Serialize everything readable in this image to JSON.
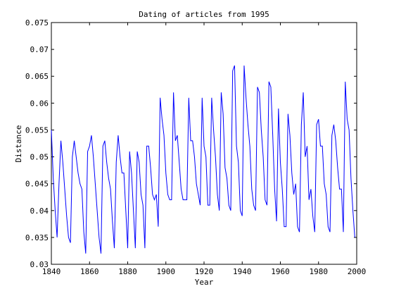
{
  "chart_data": {
    "type": "line",
    "title": "Dating of articles from 1995",
    "xlabel": "Year",
    "ylabel": "Distance",
    "xlim": [
      1840,
      2000
    ],
    "ylim": [
      0.03,
      0.075
    ],
    "xticks": [
      1840,
      1860,
      1880,
      1900,
      1920,
      1940,
      1960,
      1980,
      2000
    ],
    "xtick_labels": [
      "1840",
      "1860",
      "1880",
      "1900",
      "1920",
      "1940",
      "1960",
      "1980",
      "2000"
    ],
    "yticks": [
      0.03,
      0.035,
      0.04,
      0.045,
      0.05,
      0.055,
      0.06,
      0.065,
      0.07,
      0.075
    ],
    "ytick_labels": [
      "0.03",
      "0.035",
      "0.04",
      "0.045",
      "0.05",
      "0.055",
      "0.06",
      "0.065",
      "0.07",
      "0.075"
    ],
    "grid": false,
    "line_color": "#0000ff",
    "series": [
      {
        "x": [
          1840,
          1841,
          1842,
          1843,
          1844,
          1845,
          1846,
          1847,
          1848,
          1849,
          1850,
          1851,
          1852,
          1853,
          1854,
          1855,
          1856,
          1857,
          1858,
          1859,
          1860,
          1861,
          1862,
          1863,
          1864,
          1865,
          1866,
          1867,
          1868,
          1869,
          1870,
          1871,
          1872,
          1873,
          1874,
          1875,
          1876,
          1877,
          1878,
          1879,
          1880,
          1881,
          1882,
          1883,
          1884,
          1885,
          1886,
          1887,
          1888,
          1889,
          1890,
          1891,
          1892,
          1893,
          1894,
          1895,
          1896,
          1897,
          1898,
          1899,
          1900,
          1901,
          1902,
          1903,
          1904,
          1905,
          1906,
          1907,
          1908,
          1909,
          1910,
          1911,
          1912,
          1913,
          1914,
          1915,
          1916,
          1917,
          1918,
          1919,
          1920,
          1921,
          1922,
          1923,
          1924,
          1925,
          1926,
          1927,
          1928,
          1929,
          1930,
          1931,
          1932,
          1933,
          1934,
          1935,
          1936,
          1937,
          1938,
          1939,
          1940,
          1941,
          1942,
          1943,
          1944,
          1945,
          1946,
          1947,
          1948,
          1949,
          1950,
          1951,
          1952,
          1953,
          1954,
          1955,
          1956,
          1957,
          1958,
          1959,
          1960,
          1961,
          1962,
          1963,
          1964,
          1965,
          1966,
          1967,
          1968,
          1969,
          1970,
          1971,
          1972,
          1973,
          1974,
          1975,
          1976,
          1977,
          1978,
          1979,
          1980,
          1981,
          1982,
          1983,
          1984,
          1985,
          1986,
          1987,
          1988,
          1989,
          1990,
          1991,
          1992,
          1993,
          1994,
          1995,
          1996,
          1997,
          1998,
          1999
        ],
        "y": [
          0.055,
          0.046,
          0.04,
          0.035,
          0.045,
          0.053,
          0.049,
          0.044,
          0.039,
          0.035,
          0.034,
          0.05,
          0.053,
          0.05,
          0.047,
          0.045,
          0.044,
          0.036,
          0.032,
          0.051,
          0.052,
          0.054,
          0.05,
          0.045,
          0.04,
          0.035,
          0.032,
          0.052,
          0.053,
          0.049,
          0.046,
          0.044,
          0.038,
          0.033,
          0.049,
          0.054,
          0.05,
          0.047,
          0.047,
          0.04,
          0.033,
          0.051,
          0.047,
          0.04,
          0.033,
          0.051,
          0.049,
          0.043,
          0.041,
          0.033,
          0.052,
          0.052,
          0.048,
          0.043,
          0.042,
          0.043,
          0.037,
          0.061,
          0.057,
          0.054,
          0.047,
          0.043,
          0.042,
          0.042,
          0.062,
          0.053,
          0.054,
          0.049,
          0.044,
          0.042,
          0.042,
          0.042,
          0.061,
          0.053,
          0.053,
          0.05,
          0.045,
          0.043,
          0.041,
          0.061,
          0.052,
          0.05,
          0.041,
          0.041,
          0.061,
          0.055,
          0.05,
          0.043,
          0.04,
          0.062,
          0.058,
          0.048,
          0.046,
          0.041,
          0.04,
          0.066,
          0.067,
          0.052,
          0.049,
          0.04,
          0.039,
          0.067,
          0.061,
          0.056,
          0.052,
          0.044,
          0.041,
          0.04,
          0.063,
          0.062,
          0.055,
          0.05,
          0.042,
          0.041,
          0.064,
          0.063,
          0.054,
          0.044,
          0.038,
          0.059,
          0.049,
          0.044,
          0.037,
          0.037,
          0.058,
          0.054,
          0.047,
          0.043,
          0.045,
          0.037,
          0.036,
          0.056,
          0.062,
          0.05,
          0.052,
          0.042,
          0.044,
          0.039,
          0.036,
          0.056,
          0.057,
          0.052,
          0.052,
          0.045,
          0.043,
          0.037,
          0.036,
          0.054,
          0.056,
          0.053,
          0.048,
          0.044,
          0.044,
          0.036,
          0.064,
          0.057,
          0.055,
          0.046,
          0.04,
          0.035
        ]
      }
    ]
  }
}
